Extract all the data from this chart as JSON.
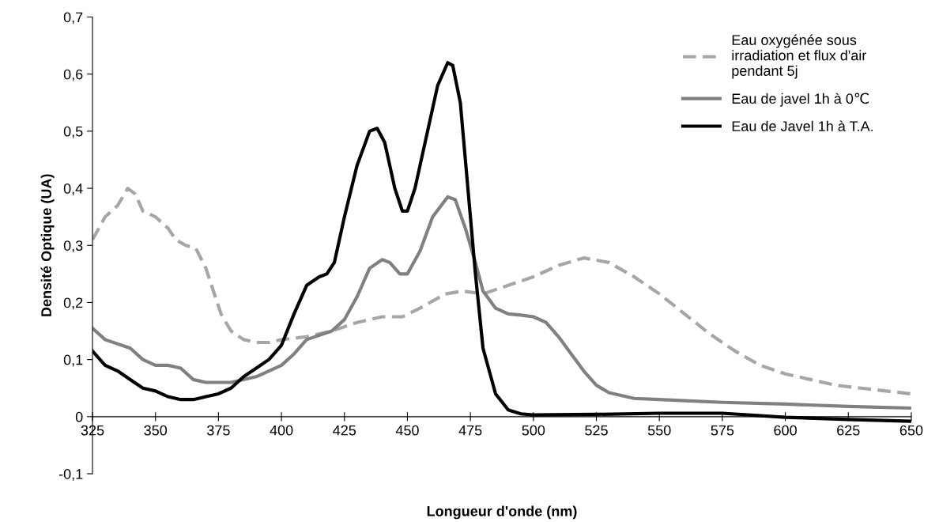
{
  "chart_data": {
    "type": "line",
    "xlabel": "Longueur d'onde (nm)",
    "ylabel": "Densité Optique (UA)",
    "xlim": [
      325,
      650
    ],
    "ylim": [
      -0.1,
      0.7
    ],
    "xticks": [
      325,
      350,
      375,
      400,
      425,
      450,
      475,
      500,
      525,
      550,
      575,
      600,
      625,
      650
    ],
    "yticks": [
      {
        "value": -0.1,
        "label": "-0,1"
      },
      0,
      {
        "value": 0.1,
        "label": "0,1"
      },
      {
        "value": 0.2,
        "label": "0,2"
      },
      {
        "value": 0.3,
        "label": "0,3"
      },
      {
        "value": 0.4,
        "label": "0,4"
      },
      {
        "value": 0.5,
        "label": "0,5"
      },
      {
        "value": 0.6,
        "label": "0,6"
      },
      {
        "value": 0.7,
        "label": "0,7"
      }
    ],
    "grid": false,
    "legend": "top right",
    "marker": "none",
    "series": [
      {
        "name": "Eau oxygénée sous\nirradiation et flux d'air\npendant 5j",
        "color": "#a6a6a6",
        "line_style": "dashed",
        "x": [
          325,
          330,
          335,
          339,
          342,
          345,
          350,
          355,
          358,
          362,
          366,
          370,
          373,
          376,
          380,
          385,
          390,
          395,
          400,
          410,
          420,
          430,
          440,
          448,
          455,
          465,
          472,
          480,
          490,
          500,
          510,
          520,
          530,
          540,
          550,
          560,
          570,
          580,
          590,
          600,
          610,
          620,
          630,
          640,
          650
        ],
        "values": [
          0.31,
          0.35,
          0.37,
          0.4,
          0.39,
          0.36,
          0.35,
          0.33,
          0.31,
          0.3,
          0.295,
          0.26,
          0.22,
          0.18,
          0.15,
          0.135,
          0.13,
          0.13,
          0.135,
          0.14,
          0.15,
          0.165,
          0.175,
          0.175,
          0.19,
          0.215,
          0.22,
          0.215,
          0.23,
          0.245,
          0.265,
          0.278,
          0.27,
          0.245,
          0.215,
          0.18,
          0.145,
          0.115,
          0.09,
          0.075,
          0.065,
          0.055,
          0.05,
          0.045,
          0.04
        ]
      },
      {
        "name": "Eau de javel 1h à 0℃",
        "color": "#808080",
        "line_style": "solid",
        "x": [
          325,
          330,
          340,
          345,
          350,
          355,
          360,
          365,
          370,
          380,
          390,
          400,
          405,
          410,
          420,
          425,
          430,
          435,
          440,
          443,
          447,
          450,
          455,
          460,
          466,
          469,
          473,
          477,
          480,
          485,
          490,
          495,
          500,
          505,
          510,
          515,
          520,
          525,
          530,
          540,
          550,
          575,
          600,
          625,
          650
        ],
        "values": [
          0.155,
          0.135,
          0.12,
          0.1,
          0.09,
          0.09,
          0.085,
          0.065,
          0.06,
          0.06,
          0.07,
          0.09,
          0.11,
          0.135,
          0.15,
          0.17,
          0.21,
          0.26,
          0.275,
          0.27,
          0.25,
          0.25,
          0.29,
          0.35,
          0.385,
          0.38,
          0.33,
          0.27,
          0.22,
          0.19,
          0.18,
          0.178,
          0.175,
          0.165,
          0.14,
          0.11,
          0.08,
          0.055,
          0.042,
          0.032,
          0.03,
          0.025,
          0.022,
          0.018,
          0.015
        ]
      },
      {
        "name": "Eau de Javel 1h à T.A.",
        "color": "#000000",
        "line_style": "solid",
        "x": [
          325,
          330,
          335,
          340,
          345,
          350,
          355,
          360,
          365,
          370,
          375,
          380,
          385,
          390,
          395,
          400,
          405,
          410,
          415,
          418,
          421,
          425,
          430,
          435,
          438,
          441,
          445,
          448,
          450,
          453,
          457,
          462,
          466,
          468,
          471,
          474,
          477,
          480,
          485,
          490,
          495,
          500,
          525,
          550,
          575,
          600,
          625,
          650
        ],
        "values": [
          0.115,
          0.09,
          0.08,
          0.065,
          0.05,
          0.045,
          0.035,
          0.03,
          0.03,
          0.035,
          0.04,
          0.05,
          0.07,
          0.085,
          0.1,
          0.125,
          0.18,
          0.23,
          0.245,
          0.25,
          0.27,
          0.35,
          0.44,
          0.5,
          0.505,
          0.48,
          0.4,
          0.36,
          0.36,
          0.4,
          0.48,
          0.58,
          0.62,
          0.615,
          0.55,
          0.4,
          0.25,
          0.12,
          0.04,
          0.012,
          0.005,
          0.003,
          0.004,
          0.006,
          0.006,
          -0.001,
          -0.005,
          -0.008
        ]
      }
    ]
  }
}
